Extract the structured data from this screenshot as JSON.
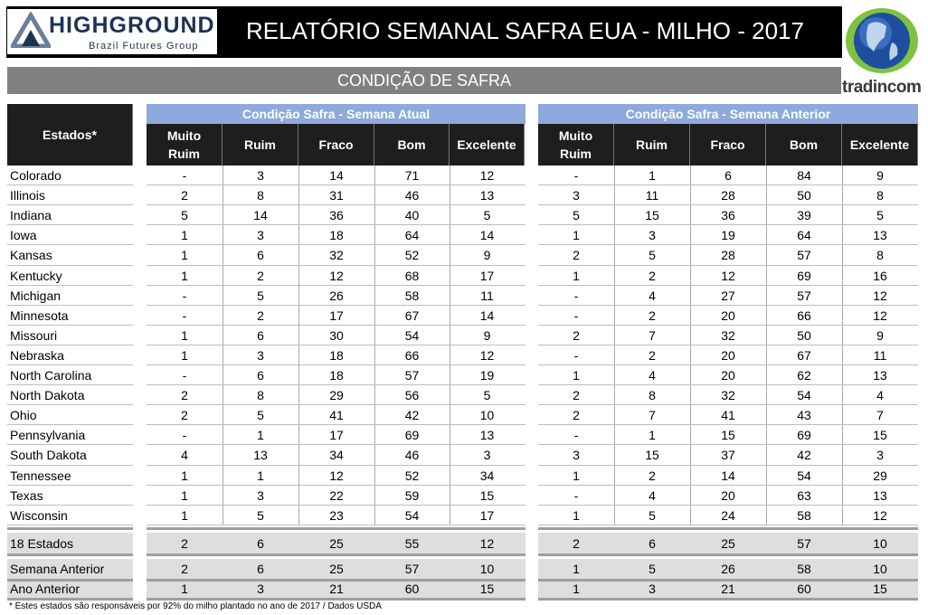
{
  "header": {
    "logo_main": "HIGHGROUND",
    "logo_sub": "Brazil Futures Group",
    "title": "RELATÓRIO SEMANAL SAFRA EUA - MILHO - 2017",
    "brand_right": "tradincom"
  },
  "section_title": "CONDIÇÃO DE SAFRA",
  "table": {
    "states_header": "Estados*",
    "group_current": "Condição Safra - Semana Atual",
    "group_previous": "Condição Safra - Semana Anterior",
    "columns": [
      "Muito Ruim",
      "Ruim",
      "Fraco",
      "Bom",
      "Excelente"
    ],
    "rows": [
      {
        "state": "Colorado",
        "current": [
          "-",
          "3",
          "14",
          "71",
          "12"
        ],
        "previous": [
          "-",
          "1",
          "6",
          "84",
          "9"
        ]
      },
      {
        "state": "Illinois",
        "current": [
          "2",
          "8",
          "31",
          "46",
          "13"
        ],
        "previous": [
          "3",
          "11",
          "28",
          "50",
          "8"
        ]
      },
      {
        "state": "Indiana",
        "current": [
          "5",
          "14",
          "36",
          "40",
          "5"
        ],
        "previous": [
          "5",
          "15",
          "36",
          "39",
          "5"
        ]
      },
      {
        "state": "Iowa",
        "current": [
          "1",
          "3",
          "18",
          "64",
          "14"
        ],
        "previous": [
          "1",
          "3",
          "19",
          "64",
          "13"
        ]
      },
      {
        "state": "Kansas",
        "current": [
          "1",
          "6",
          "32",
          "52",
          "9"
        ],
        "previous": [
          "2",
          "5",
          "28",
          "57",
          "8"
        ]
      },
      {
        "state": "Kentucky",
        "current": [
          "1",
          "2",
          "12",
          "68",
          "17"
        ],
        "previous": [
          "1",
          "2",
          "12",
          "69",
          "16"
        ]
      },
      {
        "state": "Michigan",
        "current": [
          "-",
          "5",
          "26",
          "58",
          "11"
        ],
        "previous": [
          "-",
          "4",
          "27",
          "57",
          "12"
        ]
      },
      {
        "state": "Minnesota",
        "current": [
          "-",
          "2",
          "17",
          "67",
          "14"
        ],
        "previous": [
          "-",
          "2",
          "20",
          "66",
          "12"
        ]
      },
      {
        "state": "Missouri",
        "current": [
          "1",
          "6",
          "30",
          "54",
          "9"
        ],
        "previous": [
          "2",
          "7",
          "32",
          "50",
          "9"
        ]
      },
      {
        "state": "Nebraska",
        "current": [
          "1",
          "3",
          "18",
          "66",
          "12"
        ],
        "previous": [
          "-",
          "2",
          "20",
          "67",
          "11"
        ]
      },
      {
        "state": "North Carolina",
        "current": [
          "-",
          "6",
          "18",
          "57",
          "19"
        ],
        "previous": [
          "1",
          "4",
          "20",
          "62",
          "13"
        ]
      },
      {
        "state": "North Dakota",
        "current": [
          "2",
          "8",
          "29",
          "56",
          "5"
        ],
        "previous": [
          "2",
          "8",
          "32",
          "54",
          "4"
        ]
      },
      {
        "state": "Ohio",
        "current": [
          "2",
          "5",
          "41",
          "42",
          "10"
        ],
        "previous": [
          "2",
          "7",
          "41",
          "43",
          "7"
        ]
      },
      {
        "state": "Pennsylvania",
        "current": [
          "-",
          "1",
          "17",
          "69",
          "13"
        ],
        "previous": [
          "-",
          "1",
          "15",
          "69",
          "15"
        ]
      },
      {
        "state": "South Dakota",
        "current": [
          "4",
          "13",
          "34",
          "46",
          "3"
        ],
        "previous": [
          "3",
          "15",
          "37",
          "42",
          "3"
        ]
      },
      {
        "state": "Tennessee",
        "current": [
          "1",
          "1",
          "12",
          "52",
          "34"
        ],
        "previous": [
          "1",
          "2",
          "14",
          "54",
          "29"
        ]
      },
      {
        "state": "Texas",
        "current": [
          "1",
          "3",
          "22",
          "59",
          "15"
        ],
        "previous": [
          "-",
          "4",
          "20",
          "63",
          "13"
        ]
      },
      {
        "state": "Wisconsin",
        "current": [
          "1",
          "5",
          "23",
          "54",
          "17"
        ],
        "previous": [
          "1",
          "5",
          "24",
          "58",
          "12"
        ]
      }
    ],
    "totals": [
      {
        "state": "18 Estados",
        "current": [
          "2",
          "6",
          "25",
          "55",
          "12"
        ],
        "previous": [
          "2",
          "6",
          "25",
          "57",
          "10"
        ]
      },
      {
        "state": "Semana Anterior",
        "current": [
          "2",
          "6",
          "25",
          "57",
          "10"
        ],
        "previous": [
          "1",
          "5",
          "26",
          "58",
          "10"
        ]
      },
      {
        "state": "Ano Anterior",
        "current": [
          "1",
          "3",
          "21",
          "60",
          "15"
        ],
        "previous": [
          "1",
          "3",
          "21",
          "60",
          "15"
        ]
      }
    ]
  },
  "footnote": "* Estes estados são responsáveis por 92% do milho plantado no ano de 2017 / Dados USDA",
  "colors": {
    "header_black": "#000000",
    "section_gray": "#808080",
    "group_blue": "#8ea9db",
    "logo_navy": "#1c3452"
  }
}
